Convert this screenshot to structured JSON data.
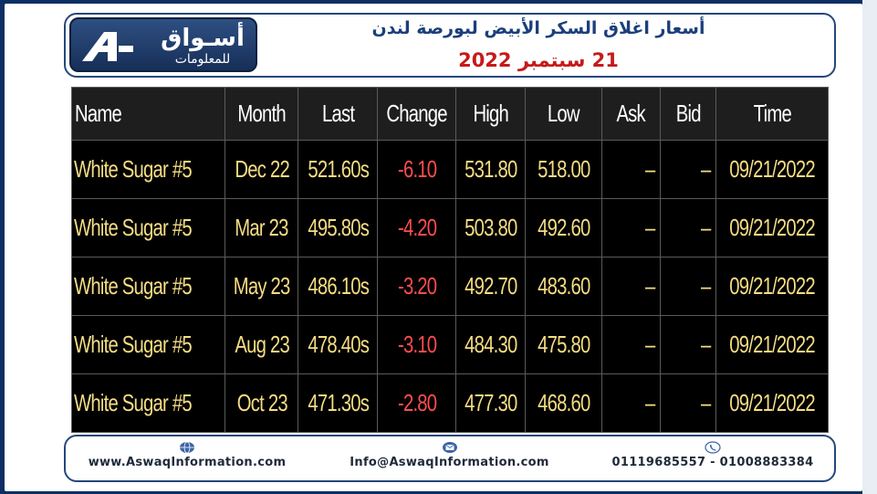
{
  "header": {
    "logo": {
      "name": "أسـواق",
      "subtitle": "للمعلومات",
      "icon": "aswaq-a-logo-icon"
    },
    "title": "أسعار اغلاق السكر الأبيض لبورصة لندن",
    "date": "21 سبتمبر 2022"
  },
  "table": {
    "columns": [
      "Name",
      "Month",
      "Last",
      "Change",
      "High",
      "Low",
      "Ask",
      "Bid",
      "Time"
    ],
    "rows": [
      {
        "name": "White Sugar #5",
        "month": "Dec 22",
        "last": "521.60s",
        "change": "-6.10",
        "high": "531.80",
        "low": "518.00",
        "ask": "–",
        "bid": "–",
        "time": "09/21/2022"
      },
      {
        "name": "White Sugar #5",
        "month": "Mar 23",
        "last": "495.80s",
        "change": "-4.20",
        "high": "503.80",
        "low": "492.60",
        "ask": "–",
        "bid": "–",
        "time": "09/21/2022"
      },
      {
        "name": "White Sugar #5",
        "month": "May 23",
        "last": "486.10s",
        "change": "-3.20",
        "high": "492.70",
        "low": "483.60",
        "ask": "–",
        "bid": "–",
        "time": "09/21/2022"
      },
      {
        "name": "White Sugar #5",
        "month": "Aug 23",
        "last": "478.40s",
        "change": "-3.10",
        "high": "484.30",
        "low": "475.80",
        "ask": "–",
        "bid": "–",
        "time": "09/21/2022"
      },
      {
        "name": "White Sugar #5",
        "month": "Oct 23",
        "last": "471.30s",
        "change": "-2.80",
        "high": "477.30",
        "low": "468.60",
        "ask": "–",
        "bid": "–",
        "time": "09/21/2022"
      }
    ]
  },
  "footer": {
    "website": {
      "icon": "globe-icon",
      "text": "www.AswaqInformation.com"
    },
    "email": {
      "icon": "envelope-icon",
      "text": "Info@AswaqInformation.com"
    },
    "phone": {
      "icon": "phone-icon",
      "text": "01119685557 - 01008883384"
    }
  },
  "colors": {
    "background": "#0d2f63",
    "frame": "#24487d",
    "title": "#1c3f7c",
    "date": "#c61a1a",
    "table_text": "#f5dd83",
    "negative": "#ff4d4d"
  }
}
